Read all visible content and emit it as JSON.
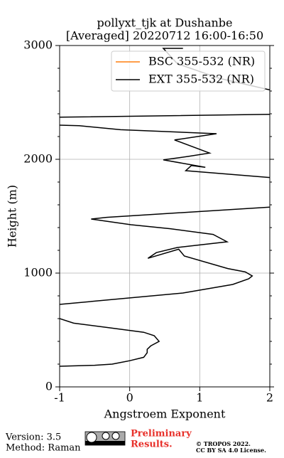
{
  "chart_data": {
    "type": "line",
    "title": [
      "pollyxt_tjk at Dushanbe",
      "[Averaged] 20220712 16:00-16:50"
    ],
    "x_label": "Angstroem Exponent",
    "y_label": "Height (m)",
    "heights": [
      181,
      190,
      200,
      230,
      260,
      300,
      330,
      360,
      400,
      450,
      480,
      520,
      560,
      600,
      null,
      725,
      825,
      900,
      950,
      975,
      1010,
      1040,
      1150,
      1210,
      1130,
      1180,
      1225,
      1275,
      1340,
      1390,
      1425,
      1475,
      1490,
      1580,
      null,
      1840,
      1900,
      1945,
      1930,
      1995,
      2025,
      2055,
      2170,
      2225,
      2260,
      2295,
      2300,
      null,
      2370,
      2395,
      null,
      2610,
      2710,
      2840,
      2975,
      2975
    ],
    "series": [
      {
        "name": "BSC 355-532 (NR)",
        "color": "#ff7f0e",
        "values": [
          null,
          null,
          null,
          null,
          null,
          null,
          null,
          null,
          null,
          null,
          null,
          null,
          null,
          null,
          null,
          null,
          null,
          null,
          null,
          null,
          null,
          null,
          null,
          null,
          null,
          null,
          null,
          null,
          null,
          null,
          null,
          null,
          null,
          null,
          null,
          null,
          null,
          null,
          null,
          null,
          null,
          null,
          null,
          null,
          null,
          null,
          null,
          null,
          null,
          null,
          null,
          null,
          null,
          null,
          null,
          null
        ]
      },
      {
        "name": "EXT 355-532 (NR)",
        "color": "#000000",
        "values": [
          -1,
          -0.5,
          -0.25,
          0,
          0.2,
          0.25,
          0.25,
          0.3,
          0.42,
          0.35,
          0.2,
          -0.3,
          -0.8,
          -1,
          null,
          -1,
          0.76,
          1.47,
          1.7,
          1.75,
          1.65,
          1.4,
          0.78,
          0.7,
          0.26,
          0.38,
          0.68,
          1.39,
          1.19,
          0.58,
          0.02,
          -0.55,
          -0.33,
          2,
          null,
          2,
          0.8,
          0.88,
          1.08,
          0.48,
          0.83,
          1.14,
          0.64,
          1.24,
          -0.13,
          -0.72,
          -1,
          null,
          -1,
          2,
          null,
          2,
          1.29,
          0.68,
          0.48,
          0.76
        ]
      }
    ],
    "xlim": [
      -1,
      2
    ],
    "xticks": [
      -1,
      0,
      1,
      2
    ],
    "ylim": [
      0,
      3000
    ],
    "yticks": [
      0,
      1000,
      2000,
      3000
    ],
    "grid": true,
    "legend": "upper right"
  },
  "footer": {
    "version": "Version: 3.5",
    "method": "Method: Raman",
    "preliminary": [
      "Preliminary",
      "Results."
    ],
    "copyright": [
      "© TROPOS 2022.",
      "CC BY SA 4.0 License."
    ]
  }
}
